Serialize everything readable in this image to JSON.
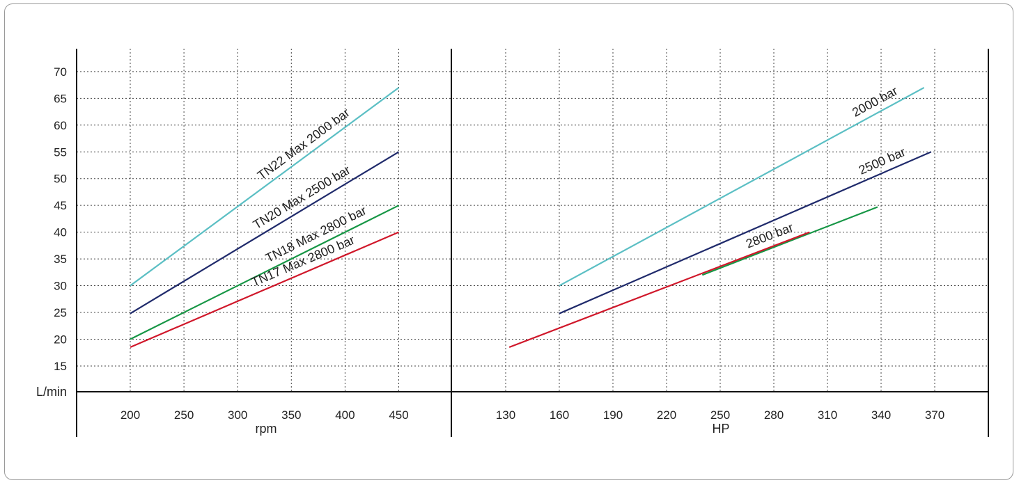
{
  "chart_data": [
    {
      "type": "line",
      "xlabel": "rpm",
      "ylabel": "L/min",
      "xticks": [
        200,
        250,
        300,
        350,
        400,
        450
      ],
      "yticks": [
        15,
        20,
        25,
        30,
        35,
        40,
        45,
        50,
        55,
        60,
        65,
        70
      ],
      "xlim": [
        150,
        475
      ],
      "ylim": [
        10,
        74
      ],
      "grid": true,
      "series": [
        {
          "name": "TN22 Max 2000 bar",
          "color": "#5bbfc4",
          "x": [
            200,
            450
          ],
          "y": [
            30,
            67
          ]
        },
        {
          "name": "TN20 Max 2500 bar",
          "color": "#1f2a6b",
          "x": [
            200,
            450
          ],
          "y": [
            24.8,
            55
          ]
        },
        {
          "name": "TN18 Max 2800 bar",
          "color": "#169645",
          "x": [
            200,
            450
          ],
          "y": [
            20,
            45
          ]
        },
        {
          "name": "TN17 Max 2800 bar",
          "color": "#d0172a",
          "x": [
            200,
            450
          ],
          "y": [
            18.5,
            40
          ]
        }
      ]
    },
    {
      "type": "line",
      "xlabel": "HP",
      "xticks": [
        130,
        160,
        190,
        220,
        250,
        280,
        310,
        340,
        370
      ],
      "xlim": [
        100,
        400
      ],
      "ylim": [
        10,
        74
      ],
      "grid": true,
      "series": [
        {
          "name": "2000 bar",
          "color": "#5bbfc4",
          "x": [
            160,
            364
          ],
          "y": [
            30,
            67
          ]
        },
        {
          "name": "2500 bar",
          "color": "#1f2a6b",
          "x": [
            160,
            368
          ],
          "y": [
            24.8,
            55
          ]
        },
        {
          "color": "#169645",
          "x": [
            240,
            338
          ],
          "y": [
            32,
            44.7
          ]
        },
        {
          "name": "2800 bar",
          "color": "#d0172a",
          "x": [
            132,
            300
          ],
          "y": [
            18.5,
            40
          ]
        }
      ]
    }
  ]
}
